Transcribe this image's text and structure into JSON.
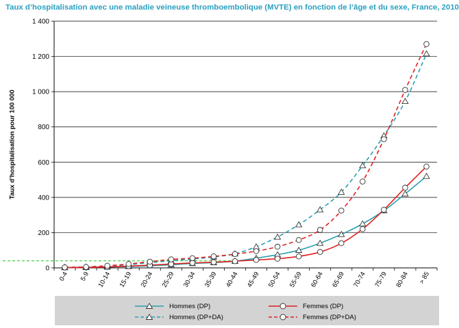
{
  "chart_data": {
    "type": "line",
    "title": "Taux d’hospitalisation avec une maladie veineuse thromboembolique (MVTE) en fonction de l’âge et du sexe, France, 2010",
    "xlabel": "",
    "ylabel": "Taux d’hospitalisation pour 100 000",
    "ylim": [
      0,
      1400
    ],
    "yticks": [
      0,
      200,
      400,
      600,
      800,
      1000,
      1200,
      1400
    ],
    "ytick_labels": [
      "0",
      "200",
      "400",
      "600",
      "800",
      "1 000",
      "1 200",
      "1 400"
    ],
    "grid": true,
    "categories": [
      "0-4",
      "5-9",
      "10-14",
      "15-19",
      "20-24",
      "25-29",
      "30-34",
      "35-39",
      "40-44",
      "45-49",
      "50-54",
      "55-59",
      "60-64",
      "65-69",
      "70-74",
      "75-79",
      "80-84",
      "> 85"
    ],
    "reference_line": {
      "value": 40,
      "color": "#33cc33"
    },
    "series": [
      {
        "name": "Hommes (DP)",
        "color": "#2aa0b0",
        "dashed": false,
        "marker": "triangle",
        "values": [
          2,
          3,
          5,
          8,
          12,
          18,
          25,
          30,
          38,
          55,
          75,
          100,
          140,
          190,
          250,
          325,
          420,
          520
        ]
      },
      {
        "name": "Hommes (DP+DA)",
        "color": "#2aa0b0",
        "dashed": true,
        "marker": "triangle",
        "values": [
          3,
          5,
          10,
          18,
          30,
          40,
          50,
          62,
          80,
          120,
          175,
          245,
          330,
          430,
          580,
          750,
          945,
          1215
        ]
      },
      {
        "name": "Femmes (DP)",
        "color": "#e02020",
        "dashed": false,
        "marker": "circle",
        "values": [
          2,
          2,
          5,
          10,
          15,
          22,
          28,
          32,
          38,
          45,
          52,
          65,
          90,
          140,
          220,
          330,
          455,
          575
        ]
      },
      {
        "name": "Femmes (DP+DA)",
        "color": "#e02020",
        "dashed": true,
        "marker": "circle",
        "values": [
          3,
          5,
          12,
          22,
          35,
          48,
          55,
          65,
          78,
          95,
          120,
          158,
          215,
          325,
          490,
          730,
          1010,
          1270
        ]
      }
    ]
  }
}
